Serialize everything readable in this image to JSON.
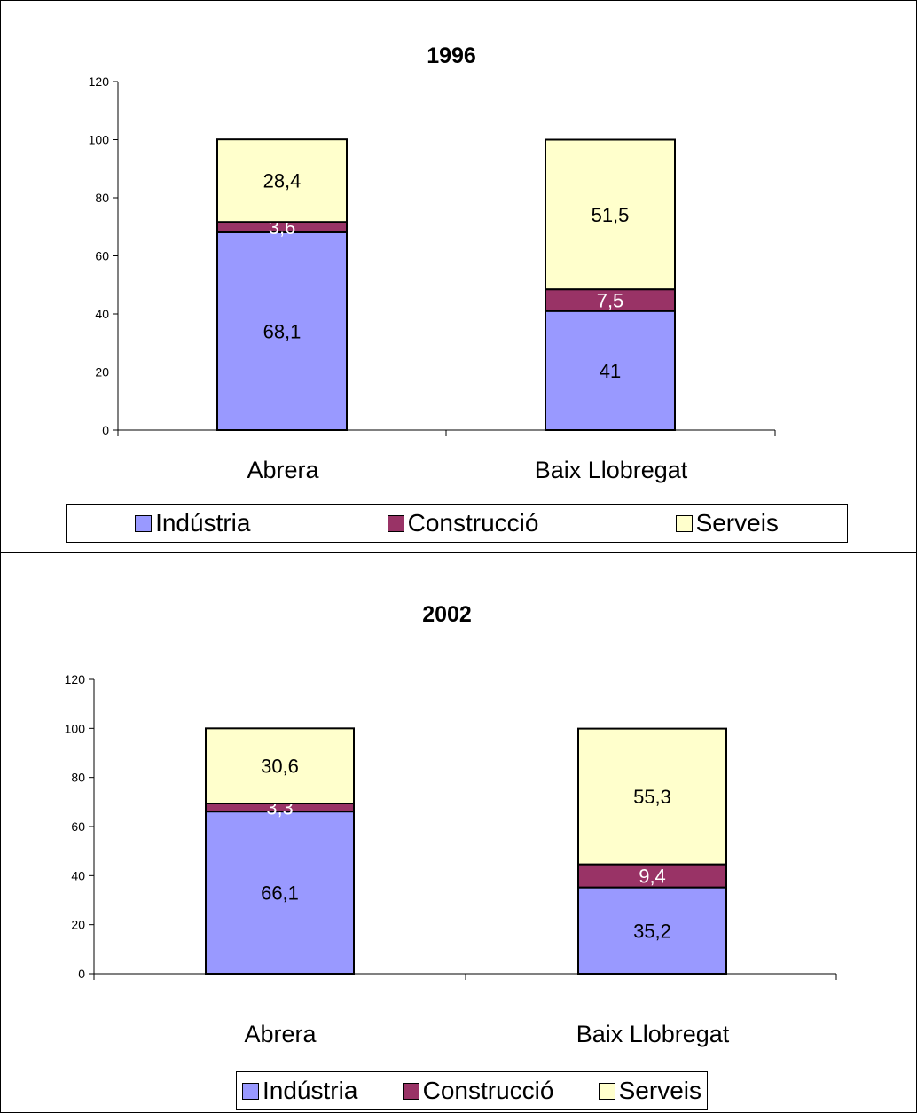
{
  "chart_data": [
    {
      "type": "bar",
      "stacked": true,
      "title": "1996",
      "categories": [
        "Abrera",
        "Baix Llobregat"
      ],
      "series": [
        {
          "name": "Indústria",
          "values": [
            68.1,
            41
          ],
          "labels": [
            "68,1",
            "41"
          ]
        },
        {
          "name": "Construcció",
          "values": [
            3.6,
            7.5
          ],
          "labels": [
            "3,6",
            "7,5"
          ]
        },
        {
          "name": "Serveis",
          "values": [
            28.4,
            51.5
          ],
          "labels": [
            "28,4",
            "51,5"
          ]
        }
      ],
      "ylim": [
        0,
        120
      ],
      "yticks": [
        0,
        20,
        40,
        60,
        80,
        100,
        120
      ],
      "legend": "bottom",
      "grid": false
    },
    {
      "type": "bar",
      "stacked": true,
      "title": "2002",
      "categories": [
        "Abrera",
        "Baix Llobregat"
      ],
      "series": [
        {
          "name": "Indústria",
          "values": [
            66.1,
            35.2
          ],
          "labels": [
            "66,1",
            "35,2"
          ]
        },
        {
          "name": "Construcció",
          "values": [
            3.3,
            9.4
          ],
          "labels": [
            "3,3",
            "9,4"
          ]
        },
        {
          "name": "Serveis",
          "values": [
            30.6,
            55.3
          ],
          "labels": [
            "30,6",
            "55,3"
          ]
        }
      ],
      "ylim": [
        0,
        120
      ],
      "yticks": [
        0,
        20,
        40,
        60,
        80,
        100,
        120
      ],
      "legend": "bottom",
      "grid": false
    }
  ],
  "colors": {
    "industria": "#9999ff",
    "construccio": "#993366",
    "serveis": "#ffffcc",
    "label_light": "#ffffff",
    "label_dark": "#000000"
  }
}
